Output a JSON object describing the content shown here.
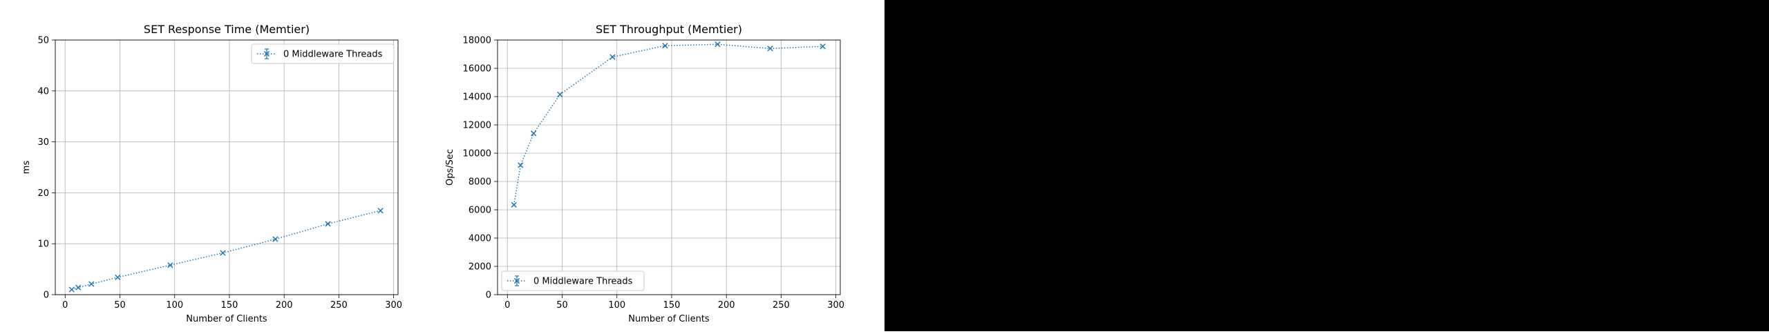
{
  "colors": {
    "series": "#1f77b4",
    "grid": "#b0b0b0",
    "background": "#ffffff",
    "black_region": "#000000"
  },
  "chart_data": [
    {
      "type": "line",
      "title": "SET Response Time (Memtier)",
      "xlabel": "Number of Clients",
      "ylabel": "ms",
      "xlim": [
        -9,
        304
      ],
      "ylim": [
        0,
        50
      ],
      "xticks": [
        0,
        50,
        100,
        150,
        200,
        250,
        300
      ],
      "yticks": [
        0,
        10,
        20,
        30,
        40,
        50
      ],
      "grid": true,
      "legend_position": "upper-right",
      "series": [
        {
          "name": "0 Middleware Threads",
          "marker": "x",
          "linestyle": "dotted",
          "x": [
            6,
            12,
            24,
            48,
            96,
            144,
            192,
            240,
            288
          ],
          "y": [
            1.0,
            1.4,
            2.1,
            3.4,
            5.8,
            8.2,
            10.9,
            13.9,
            16.5
          ]
        }
      ]
    },
    {
      "type": "line",
      "title": "SET Throughput (Memtier)",
      "xlabel": "Number of Clients",
      "ylabel": "Ops/Sec",
      "xlim": [
        -9,
        304
      ],
      "ylim": [
        0,
        18000
      ],
      "xticks": [
        0,
        50,
        100,
        150,
        200,
        250,
        300
      ],
      "yticks": [
        0,
        2000,
        4000,
        6000,
        8000,
        10000,
        12000,
        14000,
        16000,
        18000
      ],
      "grid": true,
      "legend_position": "lower-left",
      "series": [
        {
          "name": "0 Middleware Threads",
          "marker": "x",
          "linestyle": "dotted",
          "x": [
            6,
            12,
            24,
            48,
            96,
            144,
            192,
            240,
            288
          ],
          "y": [
            6350,
            9150,
            11400,
            14150,
            16800,
            17600,
            17700,
            17400,
            17550
          ]
        }
      ]
    }
  ]
}
